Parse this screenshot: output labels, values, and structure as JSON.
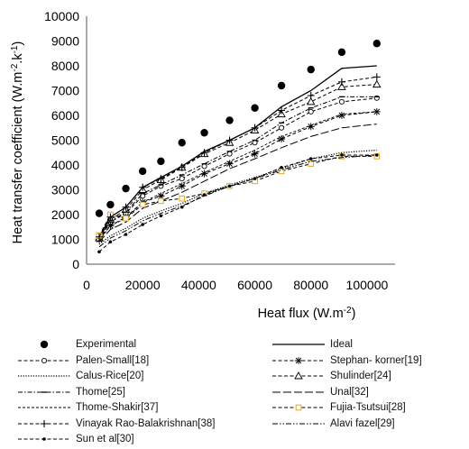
{
  "chart_data": {
    "type": "line",
    "title": "",
    "xlabel": "Heat flux (W.m",
    "xlabel_sup": "-2",
    "xlabel_end": ")",
    "ylabel": "Heat transfer coefficient (W.m",
    "ylabel_sup1": "-2",
    "ylabel_mid": ".k",
    "ylabel_sup2": "-1",
    "ylabel_end": ")",
    "xlim": [
      0,
      110000
    ],
    "ylim": [
      0,
      10000
    ],
    "x_ticks": [
      "0",
      "20000",
      "40000",
      "60000",
      "80000",
      "100000"
    ],
    "y_ticks": [
      "0",
      "1000",
      "2000",
      "3000",
      "4000",
      "5000",
      "6000",
      "7000",
      "8000",
      "9000",
      "10000"
    ],
    "grid": false,
    "legend_position": "bottom",
    "series": [
      {
        "name": "Experimental",
        "style": "markers",
        "marker": "dot",
        "color": "#000000",
        "x": [
          4500,
          8500,
          14000,
          20000,
          26500,
          34000,
          42000,
          51000,
          60000,
          69500,
          80000,
          91000,
          103500
        ],
        "y": [
          2050,
          2400,
          3050,
          3750,
          4150,
          4900,
          5300,
          5800,
          6300,
          7200,
          7850,
          8550,
          8900
        ]
      },
      {
        "name": "Ideal",
        "style": "solid",
        "marker": "none",
        "color": "#000000",
        "x": [
          4500,
          8500,
          14000,
          20000,
          26500,
          34000,
          42000,
          51000,
          60000,
          69500,
          80000,
          91000,
          103500
        ],
        "y": [
          1100,
          1900,
          2300,
          3100,
          3500,
          3950,
          4550,
          5000,
          5500,
          6350,
          7000,
          7900,
          8000
        ]
      },
      {
        "name": "Palen-Small[18]",
        "style": "dash",
        "marker": "circle",
        "color": "#000000",
        "x": [
          4500,
          8500,
          14000,
          20000,
          26500,
          34000,
          42000,
          51000,
          60000,
          69500,
          80000,
          91000,
          103500
        ],
        "y": [
          1000,
          1700,
          2050,
          2750,
          3150,
          3450,
          3950,
          4450,
          4900,
          5500,
          6150,
          6550,
          6700
        ]
      },
      {
        "name": "Stephan- korner[19]",
        "style": "dash",
        "marker": "asterisk",
        "color": "#000000",
        "x": [
          4500,
          8500,
          14000,
          20000,
          26500,
          34000,
          42000,
          51000,
          60000,
          69500,
          80000,
          91000,
          103500
        ],
        "y": [
          1000,
          1550,
          1900,
          2500,
          2750,
          3150,
          3650,
          4050,
          4450,
          5050,
          5550,
          6000,
          6150
        ]
      },
      {
        "name": "Calus-Rice[20]",
        "style": "dotted",
        "marker": "none",
        "color": "#000000",
        "x": [
          4500,
          8500,
          14000,
          20000,
          26500,
          34000,
          42000,
          51000,
          60000,
          69500,
          80000,
          91000,
          103500
        ],
        "y": [
          800,
          1150,
          1450,
          1850,
          2150,
          2450,
          2850,
          3200,
          3500,
          3850,
          4250,
          4500,
          4600
        ]
      },
      {
        "name": "Shulinder[24]",
        "style": "dash",
        "marker": "triangle",
        "color": "#000000",
        "x": [
          4500,
          8500,
          14000,
          20000,
          26500,
          34000,
          42000,
          51000,
          60000,
          69500,
          80000,
          91000,
          103500
        ],
        "y": [
          1050,
          1800,
          2200,
          3000,
          3400,
          3900,
          4450,
          4900,
          5400,
          6050,
          6550,
          7150,
          7250
        ]
      },
      {
        "name": "Thome[25]",
        "style": "dash-dot",
        "marker": "tick",
        "color": "#000000",
        "x": [
          4500,
          8500,
          14000,
          20000,
          26500,
          34000,
          42000,
          51000,
          60000,
          69500,
          80000,
          91000,
          103500
        ],
        "y": [
          1050,
          1750,
          2100,
          2850,
          3200,
          3600,
          4050,
          4550,
          5000,
          5700,
          6300,
          6750,
          6750
        ]
      },
      {
        "name": "Unal[32]",
        "style": "longdash",
        "marker": "none",
        "color": "#000000",
        "x": [
          4500,
          8500,
          14000,
          20000,
          26500,
          34000,
          42000,
          51000,
          60000,
          69500,
          80000,
          91000,
          103500
        ],
        "y": [
          900,
          1400,
          1700,
          2250,
          2550,
          2900,
          3350,
          3850,
          4250,
          4700,
          5150,
          5500,
          5650
        ]
      },
      {
        "name": "Thome-Shakir[37]",
        "style": "thin-dash",
        "marker": "none",
        "color": "#000000",
        "x": [
          4500,
          8500,
          14000,
          20000,
          26500,
          34000,
          42000,
          51000,
          60000,
          69500,
          80000,
          91000,
          103500
        ],
        "y": [
          950,
          1550,
          1850,
          2500,
          2850,
          3250,
          3700,
          4150,
          4600,
          5150,
          5600,
          6050,
          6150
        ]
      },
      {
        "name": "Fujia-Tsutsui[28]",
        "style": "dash",
        "marker": "square",
        "color": "#e6a817",
        "x": [
          4500,
          8500,
          14000,
          20000,
          26500,
          34000,
          42000,
          51000,
          60000,
          69500,
          80000,
          91000,
          103500
        ],
        "y": [
          1150,
          2000,
          1850,
          2400,
          2550,
          2650,
          2850,
          3150,
          3350,
          3750,
          4050,
          4350,
          4350
        ]
      },
      {
        "name": "Vinayak Rao-Balakrishnan[38]",
        "style": "dash",
        "marker": "plus",
        "color": "#000000",
        "x": [
          4500,
          8500,
          14000,
          20000,
          26500,
          34000,
          42000,
          51000,
          60000,
          69500,
          80000,
          91000,
          103500
        ],
        "y": [
          1100,
          1900,
          2300,
          3100,
          3450,
          3900,
          4500,
          5000,
          5500,
          6200,
          6800,
          7350,
          7550
        ]
      },
      {
        "name": "Alavi fazel[29]",
        "style": "dash-dot-dot",
        "marker": "none",
        "color": "#000000",
        "x": [
          4500,
          8500,
          14000,
          20000,
          26500,
          34000,
          42000,
          51000,
          60000,
          69500,
          80000,
          91000,
          103500
        ],
        "y": [
          700,
          1050,
          1350,
          1750,
          2050,
          2350,
          2750,
          3150,
          3450,
          3800,
          4150,
          4300,
          4400
        ]
      },
      {
        "name": "Sun et al[30]",
        "style": "dash",
        "marker": "dot-small",
        "color": "#000000",
        "x": [
          4500,
          8500,
          14000,
          20000,
          26500,
          34000,
          42000,
          51000,
          60000,
          69500,
          80000,
          91000,
          103500
        ],
        "y": [
          500,
          900,
          1200,
          1600,
          1950,
          2300,
          2800,
          3150,
          3450,
          3900,
          4250,
          4400,
          4400
        ]
      }
    ]
  }
}
